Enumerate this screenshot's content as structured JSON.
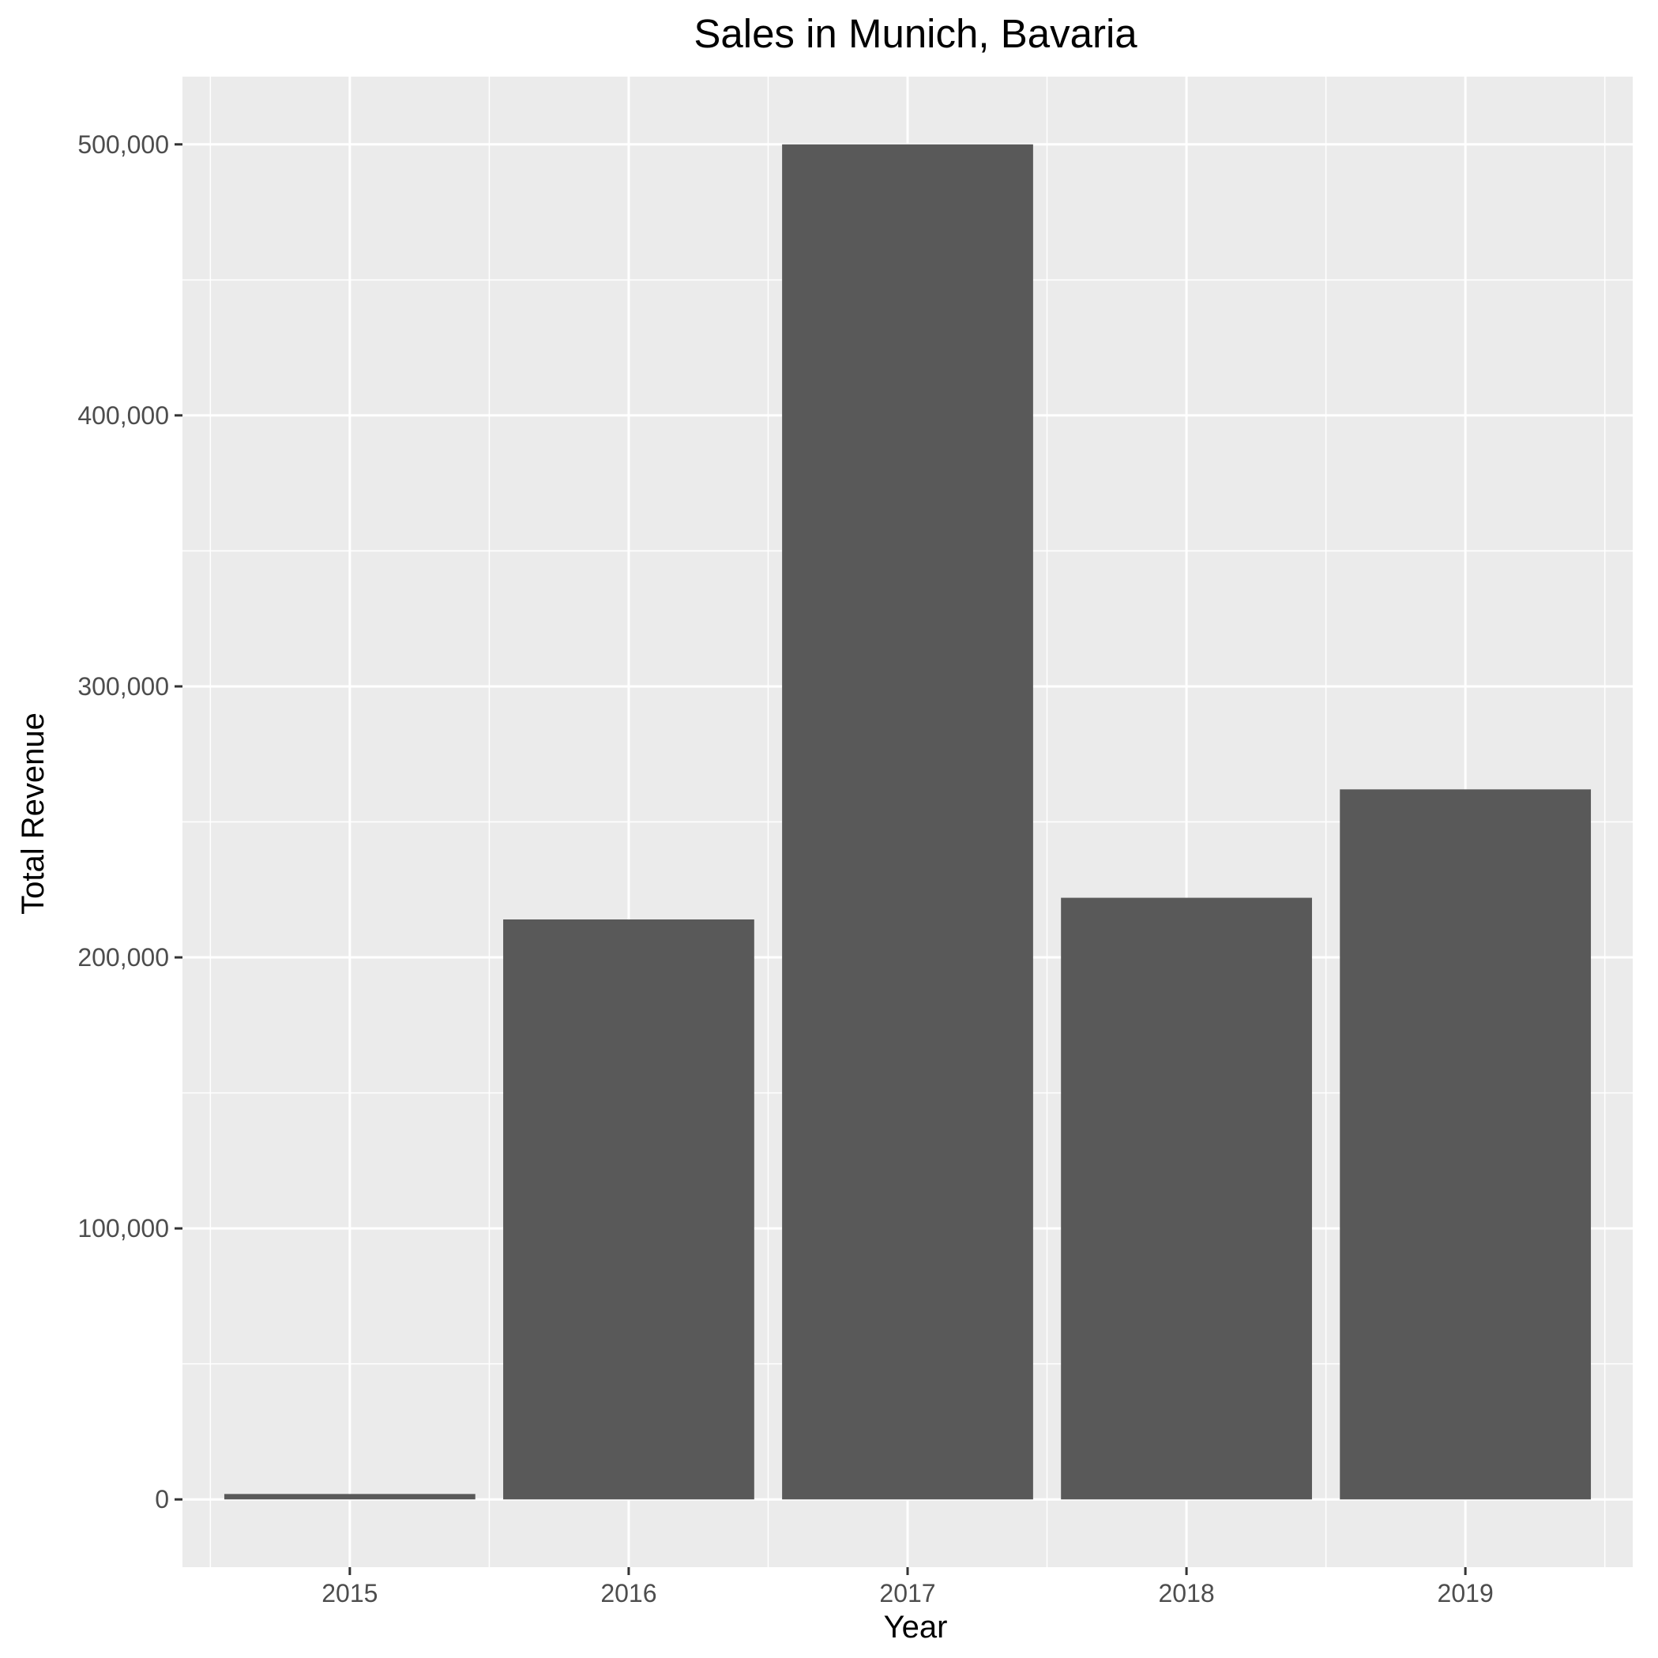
{
  "chart_data": {
    "type": "bar",
    "title": "Sales in Munich, Bavaria",
    "xlabel": "Year",
    "ylabel": "Total Revenue",
    "categories": [
      "2015",
      "2016",
      "2017",
      "2018",
      "2019"
    ],
    "values": [
      2000,
      214000,
      500000,
      222000,
      262000
    ],
    "ylim": [
      -25000,
      525000
    ],
    "yticks": [
      0,
      100000,
      200000,
      300000,
      400000,
      500000
    ],
    "ytick_labels": [
      "0",
      "100,000",
      "200,000",
      "300,000",
      "400,000",
      "500,000"
    ],
    "grid": true,
    "legend": "none",
    "colors": {
      "bar": "#595959",
      "panel": "#ebebeb",
      "grid": "#ffffff",
      "tick_text": "#4d4d4d",
      "tick_mark": "#333333"
    }
  }
}
